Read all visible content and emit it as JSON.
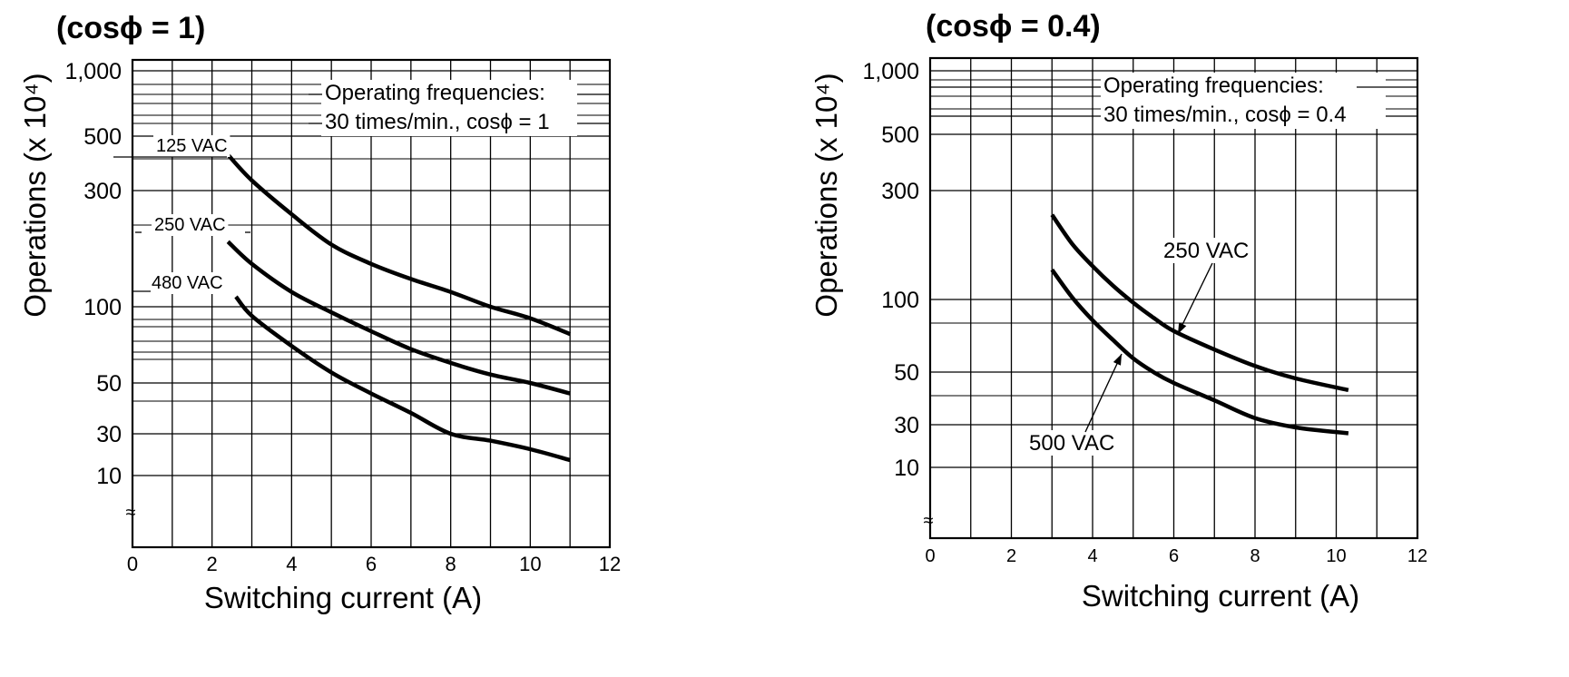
{
  "chart_data": [
    {
      "type": "line",
      "title": "(cosϕ = 1)",
      "xlabel": "Switching current (A)",
      "ylabel": "Operations  (x 10⁴)",
      "xlim": [
        0,
        12
      ],
      "x_ticks": [
        "0",
        "2",
        "4",
        "6",
        "8",
        "10",
        "12"
      ],
      "y_ticks": [
        "1,000",
        "500",
        "300",
        "100",
        "50",
        "30",
        "10"
      ],
      "y_tick_values": [
        1000,
        500,
        300,
        100,
        50,
        30,
        10
      ],
      "y_scale": "compressed-log",
      "grid": true,
      "annotation": [
        "Operating frequencies:",
        "30 times/min., cosϕ = 1"
      ],
      "axis_break": "≈",
      "series": [
        {
          "name": "125 VAC",
          "x": [
            2.4,
            3.0,
            4.0,
            5.0,
            6.0,
            7.0,
            8.0,
            9.0,
            10.0,
            11.0
          ],
          "y": [
            420,
            330,
            240,
            180,
            150,
            130,
            115,
            100,
            90,
            78
          ]
        },
        {
          "name": "250 VAC",
          "x": [
            2.4,
            3.0,
            4.0,
            5.0,
            6.0,
            7.0,
            8.0,
            9.0,
            10.0,
            11.0
          ],
          "y": [
            185,
            150,
            115,
            95,
            80,
            68,
            60,
            54,
            50,
            45
          ]
        },
        {
          "name": "480 VAC",
          "x": [
            2.6,
            3.0,
            4.0,
            5.0,
            6.0,
            7.0,
            8.0,
            9.0,
            10.0,
            11.0
          ],
          "y": [
            110,
            92,
            70,
            55,
            45,
            37,
            30,
            25,
            20,
            15
          ]
        }
      ]
    },
    {
      "type": "line",
      "title": "(cosϕ = 0.4)",
      "xlabel": "Switching current (A)",
      "ylabel": "Operations  (x 10⁴)",
      "xlim": [
        0,
        12
      ],
      "x_ticks": [
        "0",
        "2",
        "4",
        "6",
        "8",
        "10",
        "12"
      ],
      "y_ticks": [
        "1,000",
        "500",
        "300",
        "100",
        "50",
        "30",
        "10"
      ],
      "y_tick_values": [
        1000,
        500,
        300,
        100,
        50,
        30,
        10
      ],
      "y_scale": "compressed-log",
      "grid": true,
      "annotation": [
        "Operating frequencies:",
        "30 times/min., cosϕ = 0.4"
      ],
      "axis_break": "≈",
      "series": [
        {
          "name": "250 VAC",
          "x": [
            3.0,
            3.5,
            4.0,
            4.5,
            5.0,
            5.5,
            6.0,
            7.0,
            8.0,
            9.0,
            10.3
          ],
          "y": [
            235,
            175,
            140,
            115,
            97,
            84,
            74,
            62,
            53,
            47,
            42
          ]
        },
        {
          "name": "500 VAC",
          "x": [
            3.0,
            3.5,
            4.0,
            4.5,
            5.0,
            5.5,
            6.0,
            7.0,
            8.0,
            9.0,
            10.3
          ],
          "y": [
            135,
            102,
            82,
            68,
            57,
            50,
            45,
            38,
            32,
            28,
            24
          ]
        }
      ]
    }
  ]
}
